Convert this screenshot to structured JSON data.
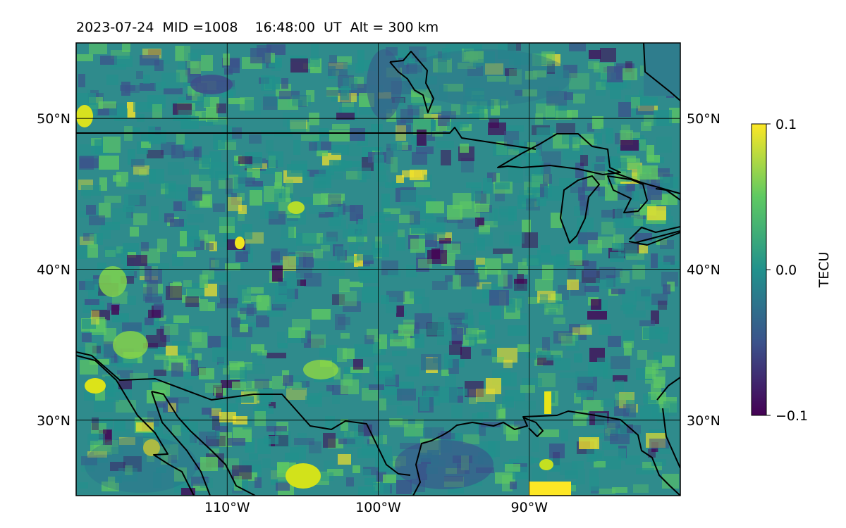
{
  "title": "2023-07-24  MID =1008    16:48:00  UT  Alt = 300 km",
  "map": {
    "lat_range": [
      25,
      55
    ],
    "lon_range": [
      -120,
      -80
    ],
    "lat_ticks": [
      {
        "value": 30,
        "label": "30°N"
      },
      {
        "value": 40,
        "label": "40°N"
      },
      {
        "value": 50,
        "label": "50°N"
      }
    ],
    "lon_ticks": [
      {
        "value": -110,
        "label": "110°W"
      },
      {
        "value": -100,
        "label": "100°W"
      },
      {
        "value": -90,
        "label": "90°W"
      }
    ],
    "gridlines": true,
    "background_color": "#2f8b8c"
  },
  "colorbar": {
    "label": "TECU",
    "colormap": "viridis",
    "min": -0.1,
    "max": 0.1,
    "ticks": [
      {
        "value": 0.1,
        "label": "0.1"
      },
      {
        "value": 0.0,
        "label": "0.0"
      },
      {
        "value": -0.1,
        "label": "−0.1"
      }
    ],
    "colors": [
      "#440154",
      "#3b528b",
      "#21918c",
      "#5ec962",
      "#fde725"
    ]
  }
}
